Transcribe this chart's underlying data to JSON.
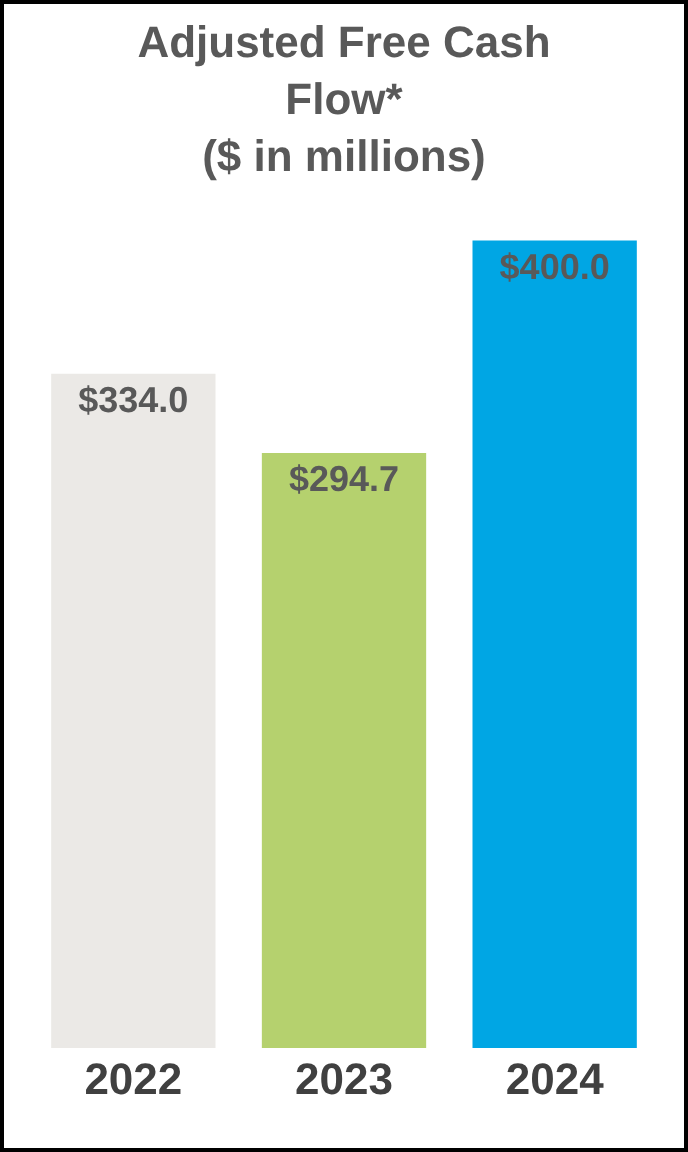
{
  "chart_data": {
    "type": "bar",
    "title": "Adjusted Free Cash Flow*",
    "subtitle": "($ in millions)",
    "categories": [
      "2022",
      "2023",
      "2024"
    ],
    "values": [
      334.0,
      294.7,
      400.0
    ],
    "value_labels": [
      "$334.0",
      "$294.7",
      "$400.0"
    ],
    "colors": [
      "#ebe9e6",
      "#b5d16e",
      "#00a6e4"
    ],
    "grid": false,
    "legend": false
  }
}
